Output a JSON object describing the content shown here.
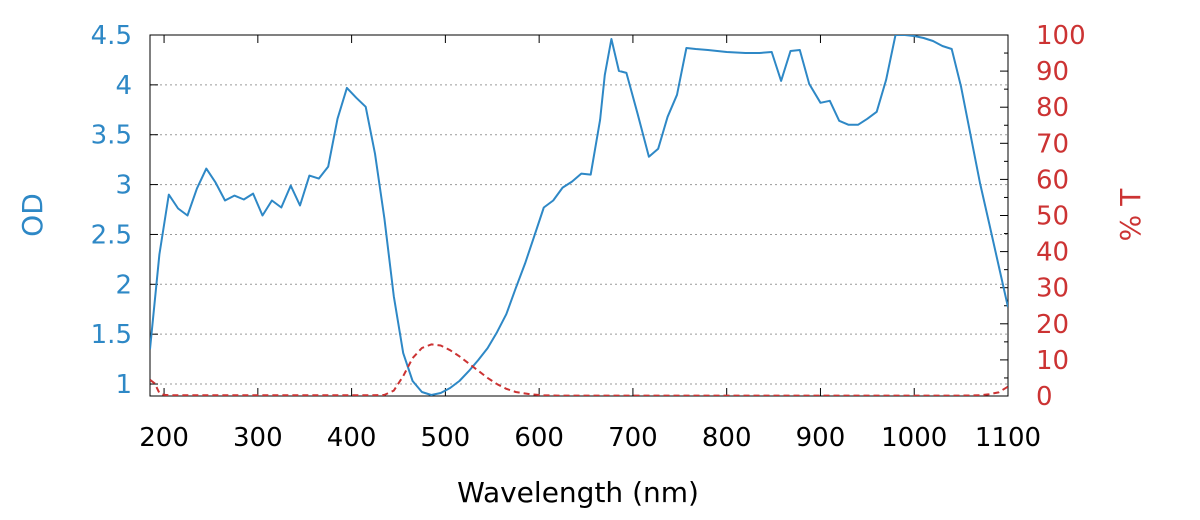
{
  "chart_data": {
    "type": "line",
    "title": "",
    "xlabel": "Wavelength (nm)",
    "ylabel_left": "OD",
    "ylabel_right": "% T",
    "xlim": [
      185,
      1100
    ],
    "ylim_left": [
      0.88,
      4.5
    ],
    "ylim_right": [
      0,
      100
    ],
    "x_ticks": [
      "200",
      "300",
      "400",
      "500",
      "600",
      "700",
      "800",
      "900",
      "1000",
      "1100"
    ],
    "y_left_ticks": [
      "1",
      "1.5",
      "2",
      "2.5",
      "3",
      "3.5",
      "4",
      "4.5"
    ],
    "y_right_ticks": [
      "0",
      "10",
      "20",
      "30",
      "40",
      "50",
      "60",
      "70",
      "80",
      "90",
      "100"
    ],
    "grid": "horizontal dotted",
    "legend": "none",
    "colors": {
      "left_axis": "#2e88c6",
      "right_axis": "#cc3333"
    },
    "series": [
      {
        "axis": "left",
        "style": "solid",
        "color": "#2e88c6",
        "x": [
          185,
          195,
          205,
          215,
          225,
          235,
          245,
          255,
          265,
          275,
          285,
          295,
          305,
          315,
          325,
          335,
          345,
          355,
          365,
          375,
          385,
          395,
          405,
          415,
          425,
          435,
          445,
          455,
          465,
          475,
          485,
          495,
          505,
          515,
          525,
          535,
          545,
          555,
          565,
          575,
          585,
          595,
          605,
          615,
          625,
          635,
          645,
          655,
          665,
          670,
          677,
          685,
          693,
          705,
          717,
          727,
          737,
          747,
          757,
          767,
          780,
          800,
          820,
          835,
          848,
          858,
          868,
          878,
          888,
          900,
          910,
          920,
          930,
          940,
          950,
          960,
          970,
          980,
          990,
          1000,
          1010,
          1020,
          1030,
          1040,
          1050,
          1060,
          1070,
          1080,
          1090,
          1100
        ],
        "y": [
          1.35,
          2.3,
          2.9,
          2.76,
          2.69,
          2.96,
          3.16,
          3.02,
          2.84,
          2.89,
          2.85,
          2.91,
          2.69,
          2.84,
          2.77,
          2.99,
          2.79,
          3.09,
          3.06,
          3.18,
          3.66,
          3.97,
          3.87,
          3.78,
          3.31,
          2.66,
          1.88,
          1.31,
          1.03,
          0.92,
          0.89,
          0.91,
          0.96,
          1.03,
          1.13,
          1.24,
          1.36,
          1.52,
          1.7,
          1.96,
          2.21,
          2.49,
          2.77,
          2.84,
          2.97,
          3.03,
          3.11,
          3.1,
          3.65,
          4.1,
          4.46,
          4.14,
          4.12,
          3.71,
          3.28,
          3.36,
          3.68,
          3.9,
          4.37,
          4.36,
          4.35,
          4.33,
          4.32,
          4.32,
          4.33,
          4.04,
          4.34,
          4.35,
          4.01,
          3.82,
          3.84,
          3.64,
          3.6,
          3.6,
          3.66,
          3.73,
          4.05,
          4.5,
          4.5,
          4.49,
          4.47,
          4.44,
          4.39,
          4.36,
          3.98,
          3.5,
          3.02,
          2.61,
          2.19,
          1.77
        ]
      },
      {
        "axis": "right",
        "style": "dashed",
        "color": "#cc3333",
        "x": [
          185,
          190,
          195,
          200,
          210,
          250,
          300,
          350,
          400,
          420,
          435,
          445,
          455,
          465,
          475,
          485,
          495,
          505,
          515,
          525,
          535,
          545,
          555,
          565,
          575,
          590,
          605,
          620,
          650,
          700,
          800,
          900,
          1000,
          1050,
          1070,
          1080,
          1090,
          1100
        ],
        "y": [
          4.5,
          3.5,
          0.8,
          0.3,
          0.2,
          0.2,
          0.2,
          0.2,
          0.2,
          0.2,
          0.3,
          1.5,
          5.5,
          10.5,
          13.3,
          14.3,
          14.0,
          12.7,
          11.0,
          9.0,
          7.0,
          5.0,
          3.3,
          2.0,
          1.1,
          0.5,
          0.2,
          0.1,
          0.1,
          0.1,
          0.1,
          0.1,
          0.1,
          0.1,
          0.2,
          0.5,
          1.0,
          2.6
        ]
      }
    ]
  }
}
